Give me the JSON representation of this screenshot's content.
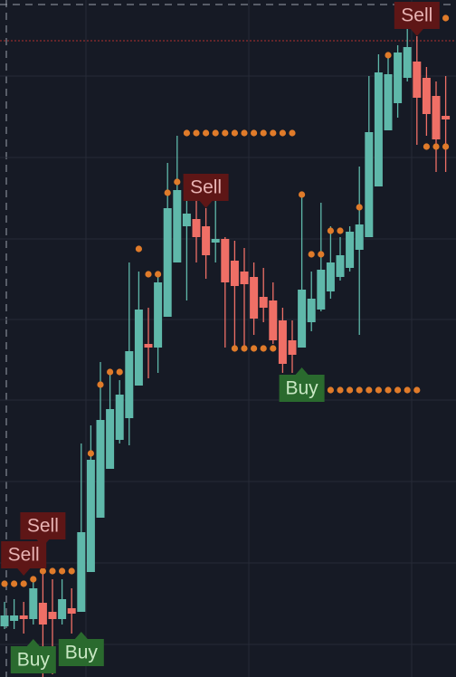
{
  "chart_data": {
    "type": "candlestick",
    "ylim": [
      0,
      748
    ],
    "yticks": [
      36,
      126,
      216,
      306,
      395,
      484,
      574,
      664
    ],
    "grid": true,
    "up_color": "#5fb8aa",
    "down_color": "#ef6f66",
    "open": [
      56,
      62,
      68,
      64,
      82,
      72,
      64,
      76,
      72,
      116,
      176,
      230,
      262,
      286,
      322,
      368,
      364,
      398,
      458,
      498,
      506,
      498,
      480,
      484,
      460,
      448,
      442,
      420,
      416,
      394,
      372,
      364,
      392,
      406,
      426,
      442,
      452,
      472,
      486,
      542,
      604,
      634,
      662,
      680,
      662,
      642,
      620
    ],
    "high": [
      83,
      86,
      83,
      108,
      118,
      108,
      108,
      98,
      258,
      278,
      348,
      338,
      328,
      458,
      448,
      408,
      448,
      568,
      598,
      548,
      528,
      518,
      528,
      486,
      482,
      474,
      458,
      452,
      436,
      408,
      394,
      532,
      448,
      524,
      498,
      486,
      498,
      564,
      664,
      688,
      686,
      698,
      728,
      708,
      674,
      658,
      664
    ],
    "low": [
      53,
      53,
      48,
      58,
      0,
      3,
      58,
      48,
      72,
      116,
      176,
      230,
      258,
      256,
      322,
      330,
      336,
      398,
      458,
      416,
      458,
      440,
      458,
      364,
      366,
      364,
      378,
      392,
      368,
      336,
      336,
      364,
      382,
      404,
      418,
      438,
      448,
      378,
      486,
      542,
      604,
      618,
      658,
      588,
      598,
      558,
      558
    ],
    "close": [
      68,
      68,
      64,
      98,
      58,
      64,
      86,
      70,
      160,
      240,
      284,
      296,
      312,
      360,
      406,
      364,
      436,
      518,
      538,
      512,
      486,
      466,
      484,
      436,
      432,
      434,
      396,
      408,
      372,
      346,
      356,
      428,
      418,
      450,
      458,
      466,
      492,
      500,
      602,
      668,
      666,
      690,
      696,
      640,
      622,
      594,
      616
    ],
    "level_color": "#e07b2a",
    "levels": [
      [
        103,
        103,
        103,
        108,
        117,
        117,
        117,
        117,
        null,
        247,
        323,
        337,
        337,
        null,
        473,
        445,
        445,
        535,
        547,
        601,
        601,
        601,
        601,
        601,
        601,
        601,
        601,
        601,
        601,
        601,
        601,
        533,
        467,
        467,
        493,
        493,
        null,
        519,
        null,
        null,
        687,
        null,
        null,
        728,
        728,
        728,
        728
      ],
      [
        null,
        null,
        null,
        null,
        null,
        null,
        null,
        null,
        null,
        null,
        null,
        null,
        null,
        null,
        null,
        null,
        null,
        null,
        null,
        null,
        null,
        null,
        null,
        null,
        363,
        363,
        363,
        363,
        363,
        317,
        317,
        317,
        317,
        317,
        317,
        317,
        317,
        317,
        317,
        317,
        317,
        317,
        317,
        317,
        586,
        586,
        586
      ]
    ],
    "reference_line": {
      "value": 703,
      "color": "#b03030"
    },
    "annotations": [
      {
        "text": "Sell",
        "index": 4,
        "value": 144
      },
      {
        "text": "Sell",
        "index": 2,
        "value": 112
      },
      {
        "text": "Sell",
        "index": 21,
        "value": 518
      },
      {
        "text": "Sell",
        "index": 43,
        "value": 708
      },
      {
        "text": "Buy",
        "index": 31,
        "value": 342
      },
      {
        "text": "Buy",
        "index": 3,
        "value": 42
      },
      {
        "text": "Buy",
        "index": 8,
        "value": 50
      }
    ]
  }
}
